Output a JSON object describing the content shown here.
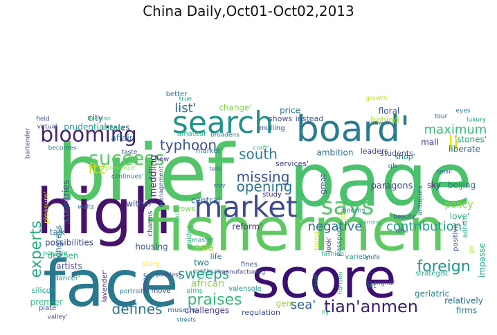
{
  "title": "China Daily,Oct01-Oct02,2013",
  "words": [
    {
      "text": "brief",
      "color": "#52c569"
    },
    {
      "text": "page",
      "color": "#4ac16d"
    },
    {
      "text": "high",
      "color": "#46136a"
    },
    {
      "text": "fishermen",
      "color": "#5ec962"
    },
    {
      "text": "face",
      "color": "#2a788e"
    },
    {
      "text": "score",
      "color": "#3b0f70"
    },
    {
      "text": "board'",
      "color": "#2a7b8e"
    },
    {
      "text": "search",
      "color": "#20928c"
    },
    {
      "text": "market",
      "color": "#3e4a89"
    },
    {
      "text": "says",
      "color": "#52c569"
    },
    {
      "text": "li",
      "color": "#dde318"
    },
    {
      "text": "blooming",
      "color": "#46246a"
    },
    {
      "text": "maximum",
      "color": "#3aba76"
    },
    {
      "text": "success",
      "color": "#5cc863"
    },
    {
      "text": "typhoon",
      "color": "#3b528b"
    },
    {
      "text": "list'",
      "color": "#31688e"
    },
    {
      "text": "south",
      "color": "#287c8e"
    },
    {
      "text": "missing",
      "color": "#39558c"
    },
    {
      "text": "opening",
      "color": "#2d718e"
    },
    {
      "text": "experts",
      "color": "#27ad81"
    },
    {
      "text": "praises",
      "color": "#35b779"
    },
    {
      "text": "sweeps",
      "color": "#21a585"
    },
    {
      "text": "negative",
      "color": "#2e6f8e"
    },
    {
      "text": "contribution'",
      "color": "#1f9e89"
    },
    {
      "text": "foreign",
      "color": "#1f968b"
    },
    {
      "text": "tian'anmen",
      "color": "#3b1c6e"
    },
    {
      "text": "sea'",
      "color": "#355f8d"
    },
    {
      "text": "defines",
      "color": "#2c728e"
    },
    {
      "text": "ftz",
      "color": "#bddf26"
    },
    {
      "text": "countries",
      "color": "#3b528b"
    },
    {
      "text": "change'",
      "color": "#86d549"
    },
    {
      "text": "city",
      "color": "#3e4c8a"
    },
    {
      "text": "floral",
      "color": "#39568c"
    },
    {
      "text": "behind",
      "color": "#a8db34"
    },
    {
      "text": "'stones'",
      "color": "#23a983"
    },
    {
      "text": "tales",
      "color": "#33638d"
    },
    {
      "text": "affair",
      "color": "#31688e"
    },
    {
      "text": "meddling",
      "color": "#481a6c"
    },
    {
      "text": "possibilities",
      "color": "#3e4a89"
    },
    {
      "text": "wither",
      "color": "#3c4f8a"
    },
    {
      "text": "deepen",
      "color": "#2fb47c"
    },
    {
      "text": "asia",
      "color": "#a2da37"
    },
    {
      "text": "two",
      "color": "#287d8e"
    },
    {
      "text": "african",
      "color": "#84d44b"
    },
    {
      "text": "reform'",
      "color": "#433e85"
    },
    {
      "text": "policy",
      "color": "#8fd744"
    },
    {
      "text": "love'",
      "color": "#29af7f"
    },
    {
      "text": "geriatric",
      "color": "#25858e"
    },
    {
      "text": "firms",
      "color": "#2c738e"
    },
    {
      "text": "gem",
      "color": "#a0da39"
    },
    {
      "text": "regulation",
      "color": "#3f4788"
    },
    {
      "text": "challenges",
      "color": "#443983"
    },
    {
      "text": "premier",
      "color": "#32b67a"
    },
    {
      "text": "housing",
      "color": "#375a8c"
    },
    {
      "text": "vows",
      "color": "#7ad151"
    },
    {
      "text": "life",
      "color": "#2e6e8e"
    },
    {
      "text": "artists",
      "color": "#3f4889"
    },
    {
      "text": "congress",
      "color": "#2a768e"
    },
    {
      "text": "talk",
      "color": "#31668e"
    },
    {
      "text": "prudential",
      "color": "#1f9a8a"
    },
    {
      "text": "freeman",
      "color": "#35b779"
    },
    {
      "text": "clients",
      "color": "#27ad81"
    },
    {
      "text": "price",
      "color": "#2a778e"
    },
    {
      "text": "shows",
      "color": "#404688"
    },
    {
      "text": "instead",
      "color": "#3b528b"
    },
    {
      "text": "growth'",
      "color": "#c8e020"
    },
    {
      "text": "towns",
      "color": "#34608d"
    },
    {
      "text": "eyes",
      "color": "#2a768e"
    },
    {
      "text": "luxury",
      "color": "#21918c"
    },
    {
      "text": "tour",
      "color": "#3a538b"
    },
    {
      "text": "mall",
      "color": "#46327e"
    },
    {
      "text": "liberate",
      "color": "#31688e"
    },
    {
      "text": "sky",
      "color": "#482878"
    },
    {
      "text": "beijing",
      "color": "#30698e"
    },
    {
      "text": "paragons",
      "color": "#3e4989"
    },
    {
      "text": "antiques",
      "color": "#2e6e8e"
    },
    {
      "text": "shop'",
      "color": "#26818e"
    },
    {
      "text": "jobs'",
      "color": "#addc30"
    },
    {
      "text": "great",
      "color": "#3c4f8a"
    },
    {
      "text": "leaders",
      "color": "#46337f"
    },
    {
      "text": "students",
      "color": "#3f4788"
    },
    {
      "text": "ambition",
      "color": "#2d708e"
    },
    {
      "text": "services'",
      "color": "#433d84"
    },
    {
      "text": "craft'",
      "color": "#35b779"
    },
    {
      "text": "market'",
      "color": "#2a768e"
    },
    {
      "text": "broadens",
      "color": "#2b758e"
    },
    {
      "text": "amateur",
      "color": "#25ac82"
    },
    {
      "text": "mulling",
      "color": "#3d4e8a"
    },
    {
      "text": "better",
      "color": "#2f6b8e"
    },
    {
      "text": "true",
      "color": "#20a386"
    },
    {
      "text": "field",
      "color": "#3b528b"
    },
    {
      "text": "virtual",
      "color": "#3c4f8a"
    },
    {
      "text": "becomes",
      "color": "#2c738e"
    },
    {
      "text": "taste",
      "color": "#3f4889"
    },
    {
      "text": "bartender",
      "color": "#3d4d8a"
    },
    {
      "text": "new",
      "color": "#433e85"
    },
    {
      "text": "provence'",
      "color": "#8bd646"
    },
    {
      "text": "continues'",
      "color": "#2a778e"
    },
    {
      "text": "management",
      "color": "#3b528b"
    },
    {
      "text": "central",
      "color": "#33638d"
    },
    {
      "text": "study",
      "color": "#46337f"
    },
    {
      "text": "stay",
      "color": "#2e6d8e"
    },
    {
      "text": "tells",
      "color": "#355e8d"
    },
    {
      "text": "waltz",
      "color": "#2b748e"
    },
    {
      "text": "pleasure'",
      "color": "#e5e419"
    },
    {
      "text": "shuts",
      "color": "#414487"
    },
    {
      "text": "charms",
      "color": "#3e4c8a"
    },
    {
      "text": "positive",
      "color": "#22a884"
    },
    {
      "text": "guides",
      "color": "#38b977"
    },
    {
      "text": "back",
      "color": "#4cc26c"
    },
    {
      "text": "master",
      "color": "#21918c"
    },
    {
      "text": "continue",
      "color": "#2c728e"
    },
    {
      "text": "manufacturing",
      "color": "#404688"
    },
    {
      "text": "fines",
      "color": "#3a548c"
    },
    {
      "text": "rising",
      "color": "#dde318"
    },
    {
      "text": "look'",
      "color": "#3c4f8a"
    },
    {
      "text": "passport",
      "color": "#2d708e"
    },
    {
      "text": "fashion'",
      "color": "#22a884"
    },
    {
      "text": "variety",
      "color": "#21918c"
    },
    {
      "text": "knife",
      "color": "#2f6c8e"
    },
    {
      "text": "booms",
      "color": "#24868e"
    },
    {
      "text": "learning",
      "color": "#2db27d"
    },
    {
      "text": "beauty",
      "color": "#3e4989"
    },
    {
      "text": "offer",
      "color": "#33638d"
    },
    {
      "text": "small",
      "color": "#2b748e"
    },
    {
      "text": "qb",
      "color": "#2c728e"
    },
    {
      "text": "go",
      "color": "#a5db36"
    },
    {
      "text": "adhd'",
      "color": "#1fa187"
    },
    {
      "text": "positive'",
      "color": "#3b528b"
    },
    {
      "text": "impasse",
      "color": "#22a785"
    },
    {
      "text": "strategist",
      "color": "#21a685"
    },
    {
      "text": "relatively",
      "color": "#2e6e8e"
    },
    {
      "text": "silicon",
      "color": "#1f9e89"
    },
    {
      "text": "plate'",
      "color": "#3b528b"
    },
    {
      "text": "valley'",
      "color": "#3f4788"
    },
    {
      "text": "dancer'",
      "color": "#1f988b"
    },
    {
      "text": "lavender'",
      "color": "#3b1c6e"
    },
    {
      "text": "portrait",
      "color": "#2b748e"
    },
    {
      "text": "make",
      "color": "#3d4e8a"
    },
    {
      "text": "move'",
      "color": "#3c4f8a"
    },
    {
      "text": "aims",
      "color": "#35b779"
    },
    {
      "text": "painless",
      "color": "#3e4c8a"
    },
    {
      "text": "museum",
      "color": "#31688e"
    },
    {
      "text": "streets",
      "color": "#2c728e"
    },
    {
      "text": "valensole",
      "color": "#1f958b"
    },
    {
      "text": "travel",
      "color": "#2c738e"
    },
    {
      "text": "horizon",
      "color": "#38b977"
    },
    {
      "text": "shanghai'",
      "color": "#3b528b"
    },
    {
      "text": "let",
      "color": "#2c728e"
    },
    {
      "text": "ny",
      "color": "#1fa187"
    },
    {
      "text": "story",
      "color": "#fde725"
    },
    {
      "text": "opportunities'",
      "color": "#c2df23"
    }
  ]
}
